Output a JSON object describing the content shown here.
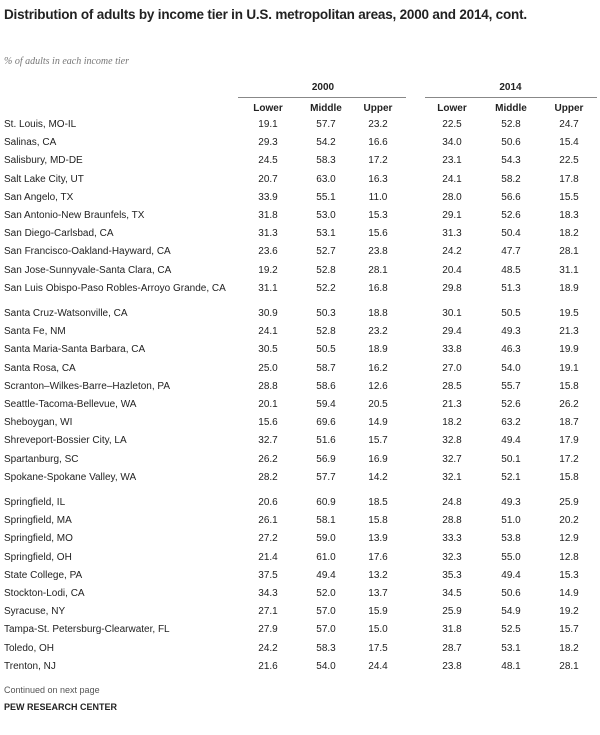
{
  "header": {
    "title": "Distribution of adults by income tier in U.S. metropolitan areas, 2000 and 2014, cont.",
    "subtitle": "% of adults in each income tier"
  },
  "table": {
    "years": [
      "2000",
      "2014"
    ],
    "tiers": [
      "Lower",
      "Middle",
      "Upper"
    ],
    "groups": [
      {
        "rows": [
          [
            "St. Louis, MO-IL",
            "19.1",
            "57.7",
            "23.2",
            "22.5",
            "52.8",
            "24.7"
          ],
          [
            "Salinas, CA",
            "29.3",
            "54.2",
            "16.6",
            "34.0",
            "50.6",
            "15.4"
          ],
          [
            "Salisbury, MD-DE",
            "24.5",
            "58.3",
            "17.2",
            "23.1",
            "54.3",
            "22.5"
          ],
          [
            "Salt Lake City, UT",
            "20.7",
            "63.0",
            "16.3",
            "24.1",
            "58.2",
            "17.8"
          ],
          [
            "San Angelo, TX",
            "33.9",
            "55.1",
            "11.0",
            "28.0",
            "56.6",
            "15.5"
          ],
          [
            "San Antonio-New Braunfels, TX",
            "31.8",
            "53.0",
            "15.3",
            "29.1",
            "52.6",
            "18.3"
          ],
          [
            "San Diego-Carlsbad, CA",
            "31.3",
            "53.1",
            "15.6",
            "31.3",
            "50.4",
            "18.2"
          ],
          [
            "San Francisco-Oakland-Hayward, CA",
            "23.6",
            "52.7",
            "23.8",
            "24.2",
            "47.7",
            "28.1"
          ],
          [
            "San Jose-Sunnyvale-Santa Clara, CA",
            "19.2",
            "52.8",
            "28.1",
            "20.4",
            "48.5",
            "31.1"
          ],
          [
            "San Luis Obispo-Paso Robles-Arroyo Grande, CA",
            "31.1",
            "52.2",
            "16.8",
            "29.8",
            "51.3",
            "18.9"
          ]
        ]
      },
      {
        "rows": [
          [
            "Santa Cruz-Watsonville, CA",
            "30.9",
            "50.3",
            "18.8",
            "30.1",
            "50.5",
            "19.5"
          ],
          [
            "Santa Fe, NM",
            "24.1",
            "52.8",
            "23.2",
            "29.4",
            "49.3",
            "21.3"
          ],
          [
            "Santa Maria-Santa Barbara, CA",
            "30.5",
            "50.5",
            "18.9",
            "33.8",
            "46.3",
            "19.9"
          ],
          [
            "Santa Rosa, CA",
            "25.0",
            "58.7",
            "16.2",
            "27.0",
            "54.0",
            "19.1"
          ],
          [
            "Scranton–Wilkes-Barre–Hazleton, PA",
            "28.8",
            "58.6",
            "12.6",
            "28.5",
            "55.7",
            "15.8"
          ],
          [
            "Seattle-Tacoma-Bellevue, WA",
            "20.1",
            "59.4",
            "20.5",
            "21.3",
            "52.6",
            "26.2"
          ],
          [
            "Sheboygan, WI",
            "15.6",
            "69.6",
            "14.9",
            "18.2",
            "63.2",
            "18.7"
          ],
          [
            "Shreveport-Bossier City, LA",
            "32.7",
            "51.6",
            "15.7",
            "32.8",
            "49.4",
            "17.9"
          ],
          [
            "Spartanburg, SC",
            "26.2",
            "56.9",
            "16.9",
            "32.7",
            "50.1",
            "17.2"
          ],
          [
            "Spokane-Spokane Valley, WA",
            "28.2",
            "57.7",
            "14.2",
            "32.1",
            "52.1",
            "15.8"
          ]
        ]
      },
      {
        "rows": [
          [
            "Springfield, IL",
            "20.6",
            "60.9",
            "18.5",
            "24.8",
            "49.3",
            "25.9"
          ],
          [
            "Springfield, MA",
            "26.1",
            "58.1",
            "15.8",
            "28.8",
            "51.0",
            "20.2"
          ],
          [
            "Springfield, MO",
            "27.2",
            "59.0",
            "13.9",
            "33.3",
            "53.8",
            "12.9"
          ],
          [
            "Springfield, OH",
            "21.4",
            "61.0",
            "17.6",
            "32.3",
            "55.0",
            "12.8"
          ],
          [
            "State College, PA",
            "37.5",
            "49.4",
            "13.2",
            "35.3",
            "49.4",
            "15.3"
          ],
          [
            "Stockton-Lodi, CA",
            "34.3",
            "52.0",
            "13.7",
            "34.5",
            "50.6",
            "14.9"
          ],
          [
            "Syracuse, NY",
            "27.1",
            "57.0",
            "15.9",
            "25.9",
            "54.9",
            "19.2"
          ],
          [
            "Tampa-St. Petersburg-Clearwater, FL",
            "27.9",
            "57.0",
            "15.0",
            "31.8",
            "52.5",
            "15.7"
          ],
          [
            "Toledo, OH",
            "24.2",
            "58.3",
            "17.5",
            "28.7",
            "53.1",
            "18.2"
          ],
          [
            "Trenton, NJ",
            "21.6",
            "54.0",
            "24.4",
            "23.8",
            "48.1",
            "28.1"
          ]
        ]
      }
    ]
  },
  "footer": {
    "note": "Continued on next page",
    "source": "PEW RESEARCH CENTER"
  }
}
